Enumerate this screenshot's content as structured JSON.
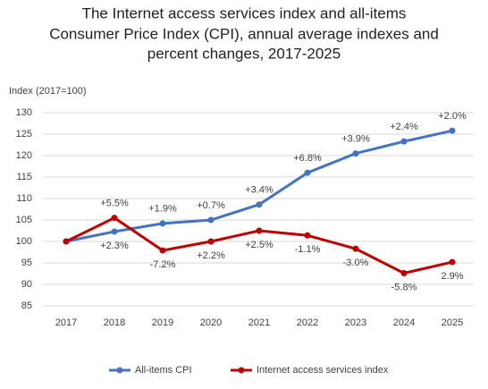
{
  "chart_data": {
    "type": "line",
    "title": [
      "The Internet access services index and all-items",
      "Consumer Price Index (CPI), annual average indexes and",
      "percent changes, 2017-2025"
    ],
    "y_label": "Index (2017=100)",
    "categories": [
      "2017",
      "2018",
      "2019",
      "2020",
      "2021",
      "2022",
      "2023",
      "2024",
      "2025"
    ],
    "series": [
      {
        "name": "All-items CPI",
        "color": "#4472c4",
        "values": [
          100,
          102.3,
          104.2,
          105.0,
          108.6,
          116.0,
          120.5,
          123.3,
          125.8
        ],
        "change_labels": [
          null,
          "+2.3%",
          "+1.9%",
          "+0.7%",
          "+3.4%",
          "+6.8%",
          "+3.9%",
          "+2.4%",
          "+2.0%"
        ]
      },
      {
        "name": "Internet access services index",
        "color": "#c00000",
        "values": [
          100,
          105.5,
          97.9,
          100.0,
          102.5,
          101.4,
          98.3,
          92.6,
          95.2
        ],
        "change_labels": [
          null,
          "+5.5%",
          "-7.2%",
          "+2.2%",
          "+2.5%",
          "-1.1%",
          "-3.0%",
          "-5.8%",
          "2.9%"
        ]
      }
    ],
    "ylim": [
      85,
      130
    ],
    "yticks": [
      85,
      90,
      95,
      100,
      105,
      110,
      115,
      120,
      125,
      130
    ],
    "grid": true,
    "legend": "bottom"
  }
}
